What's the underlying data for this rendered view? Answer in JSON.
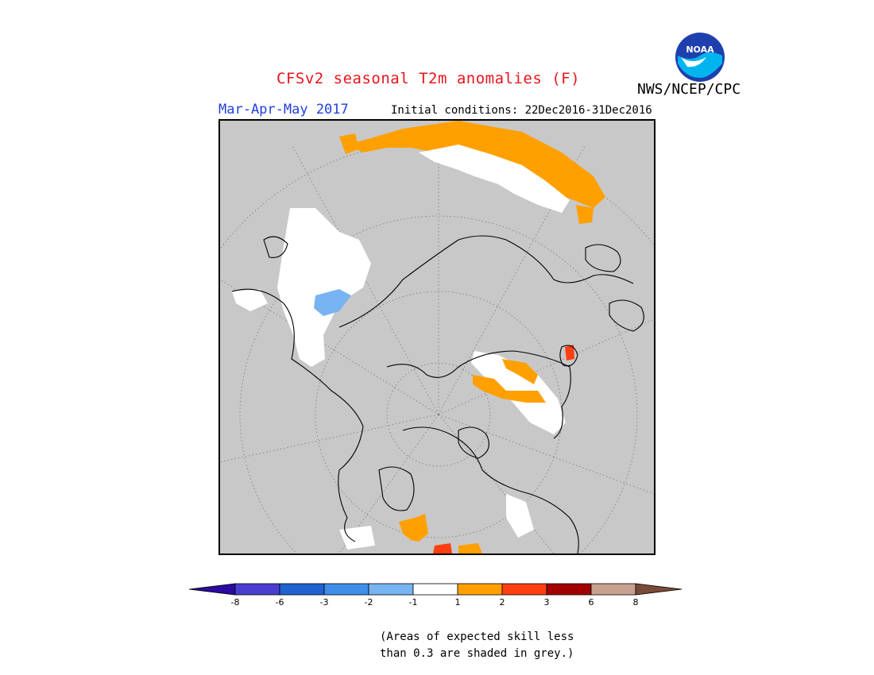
{
  "title": "CFSv2 seasonal T2m anomalies (F)",
  "agency": "NWS/NCEP/CPC",
  "logo_text": "NOAA",
  "season": "Mar-Apr-May 2017",
  "initial_conditions": "Initial conditions: 22Dec2016-31Dec2016",
  "legend": {
    "bins": [
      {
        "color": "#2a0aa0"
      },
      {
        "color": "#4a3ed0"
      },
      {
        "color": "#1f62d0"
      },
      {
        "color": "#3f8fea"
      },
      {
        "color": "#78b4f2"
      },
      {
        "color": "#ffffff"
      },
      {
        "color": "#ffa000"
      },
      {
        "color": "#ff3f10"
      },
      {
        "color": "#a00000"
      },
      {
        "color": "#c8a090"
      },
      {
        "color": "#7a4a38"
      }
    ],
    "ticks": [
      "-8",
      "-6",
      "-3",
      "-2",
      "-1",
      "1",
      "2",
      "3",
      "6",
      "8"
    ]
  },
  "note_line1": "(Areas of expected skill less",
  "note_line2": "than 0.3 are shaded in grey.)",
  "colors": {
    "skill_grey": "#c8c8c8",
    "warm": "#ffa000",
    "hot": "#ff3f10",
    "cool": "#78b4f2",
    "neutral": "#ffffff"
  }
}
